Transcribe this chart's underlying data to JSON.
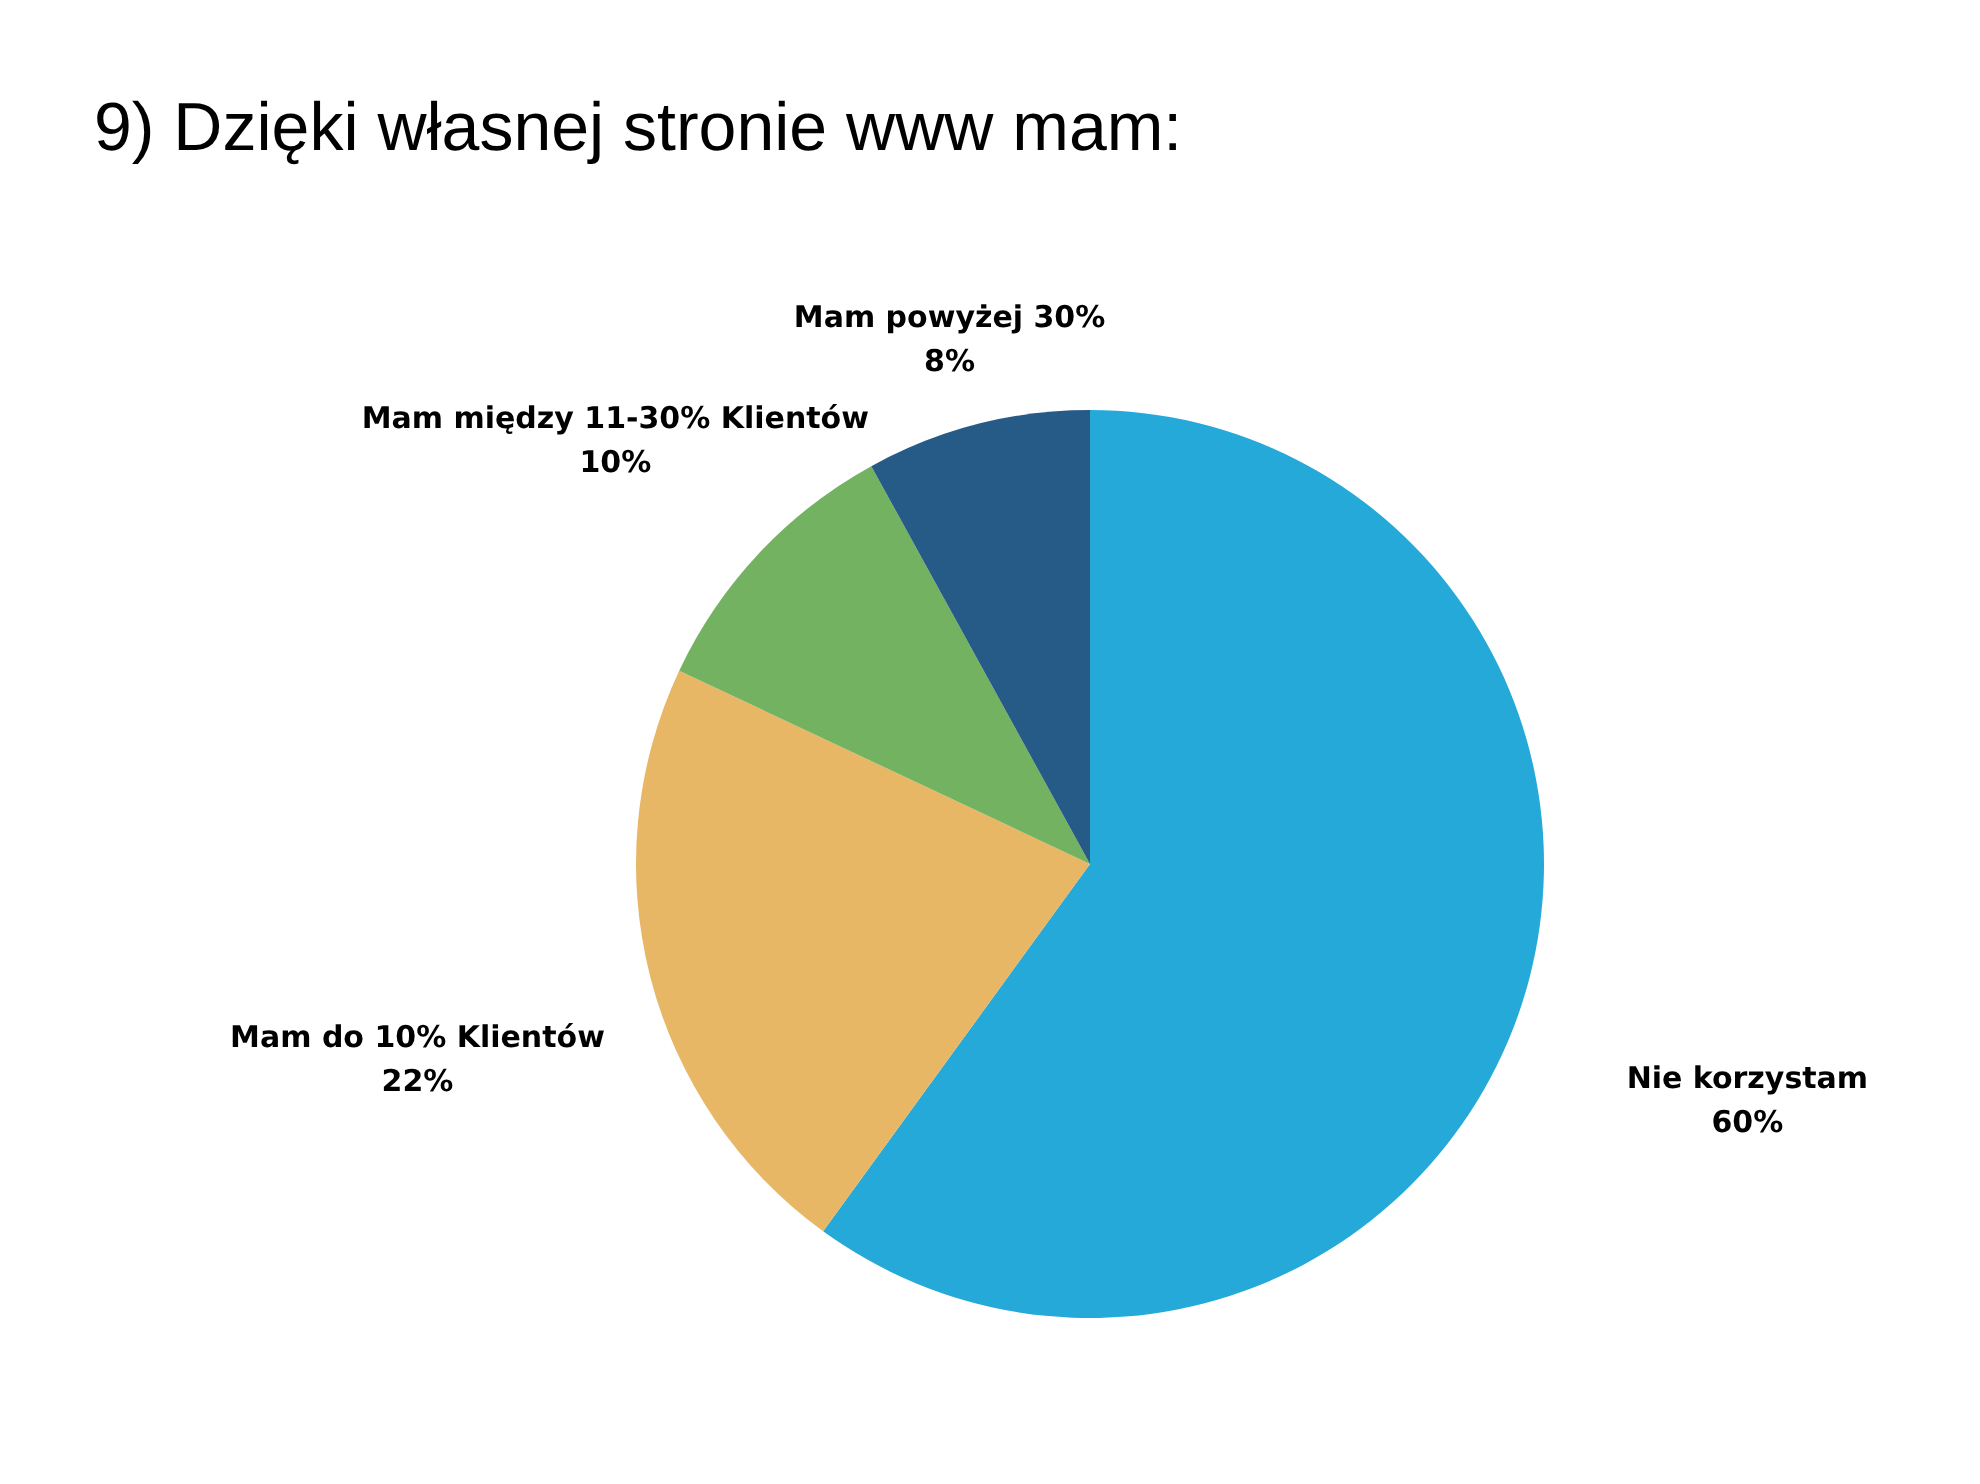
{
  "chart_data": {
    "type": "pie",
    "title": "9) Dzięki własnej stronie www mam:",
    "categories": [
      "Nie korzystam",
      "Mam do 10% Klientów",
      "Mam między 11-30% Klientów",
      "Mam powyżej 30%"
    ],
    "values": [
      60,
      22,
      10,
      8
    ],
    "value_labels": [
      "60%",
      "22%",
      "10%",
      "8%"
    ],
    "colors": [
      "#25a9d8",
      "#e8b766",
      "#73b260",
      "#265a87"
    ]
  }
}
